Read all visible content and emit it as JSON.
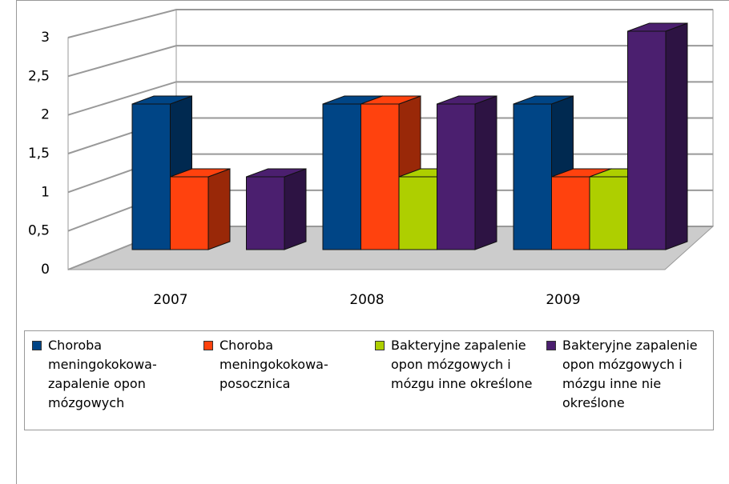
{
  "chart_data": {
    "type": "bar3d",
    "categories": [
      "2007",
      "2008",
      "2009"
    ],
    "series": [
      {
        "name": "Choroba meningokokowa-zapalenie opon mózgowych",
        "color": "#004586",
        "values": [
          2,
          2,
          2
        ]
      },
      {
        "name": "Choroba meningokokowa-posocznica",
        "color": "#ff420e",
        "values": [
          1,
          2,
          1
        ]
      },
      {
        "name": "Bakteryjne zapalenie opon mózgowych i mózgu inne określone",
        "color": "#aecf00",
        "values": [
          0,
          1,
          1
        ]
      },
      {
        "name": "Bakteryjne zapalenie opon mózgowych i mózgu inne nie określone",
        "color": "#4b1f6f",
        "values": [
          1,
          2,
          3
        ]
      }
    ],
    "ylim": [
      0,
      3
    ],
    "yticks": [
      0,
      {
        "value": 0.5,
        "label": "0,5"
      },
      1,
      {
        "value": 1.5,
        "label": "1,5"
      },
      2,
      {
        "value": 2.5,
        "label": "2,5"
      },
      3
    ],
    "grid": true,
    "legend": "bottom"
  }
}
